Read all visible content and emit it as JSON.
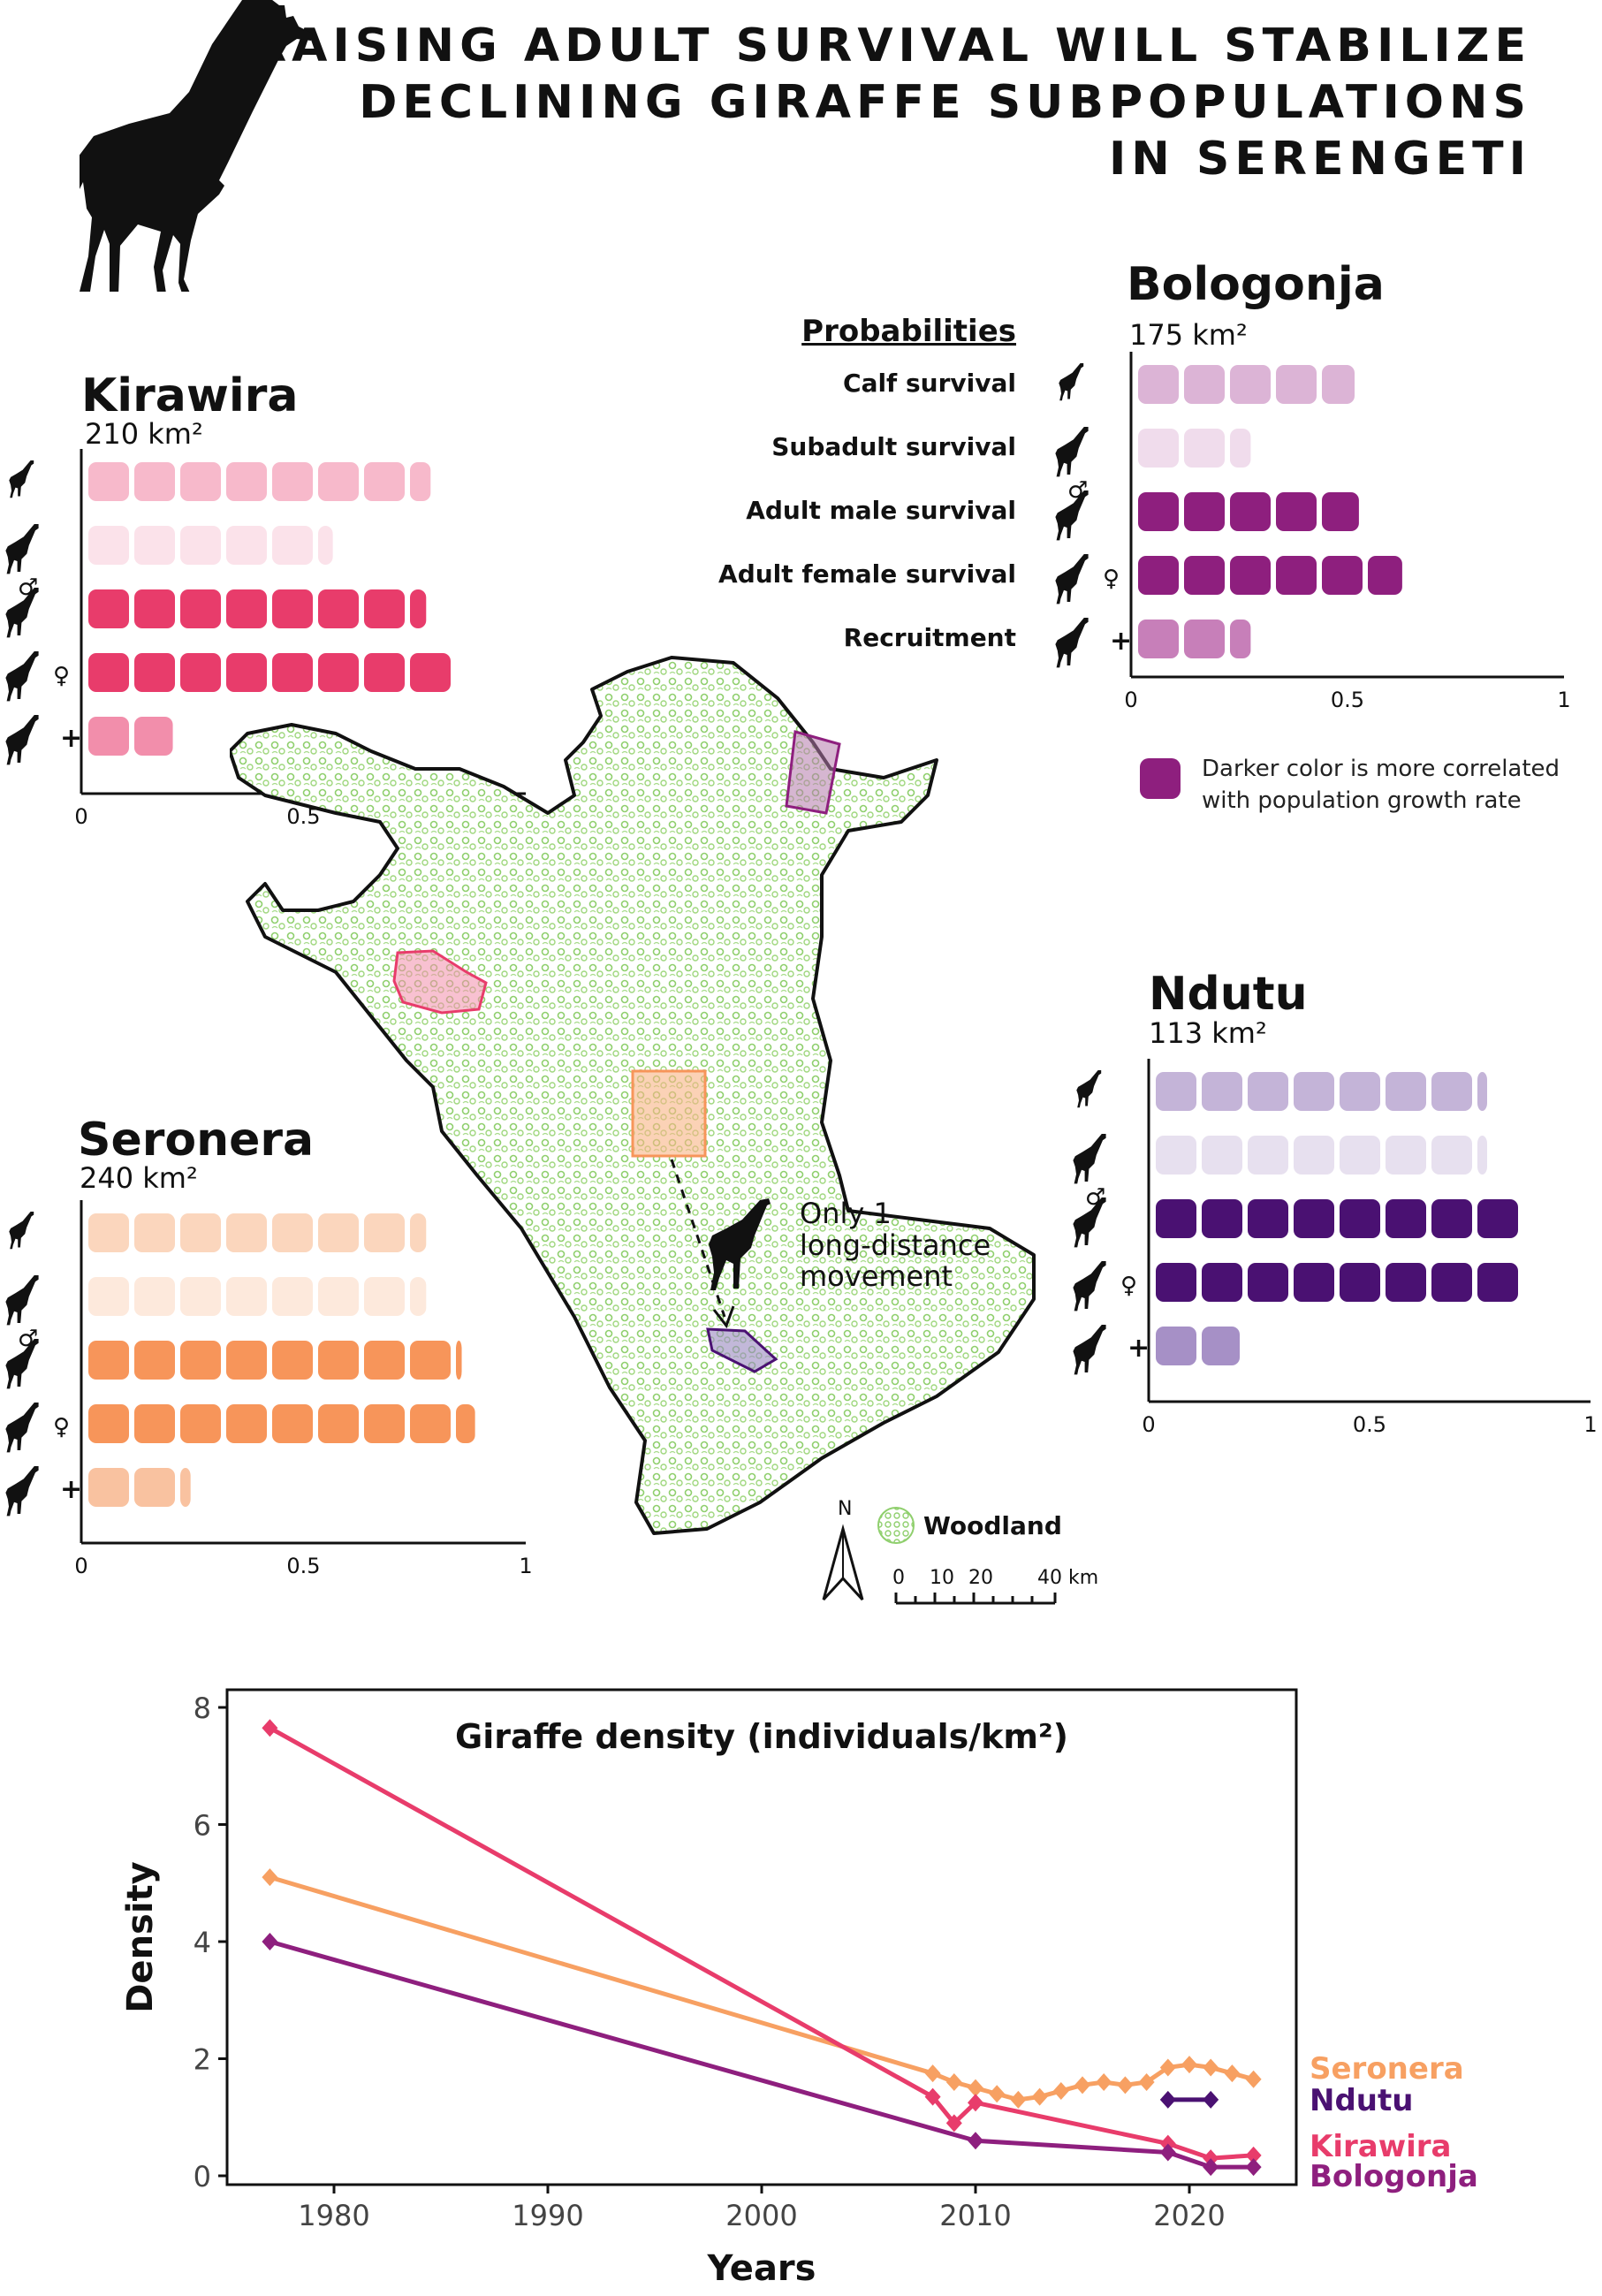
{
  "title": {
    "line1": "RAISING ADULT SURVIVAL WILL STABILIZE",
    "line2": "DECLINING GIRAFFE SUBPOPULATIONS",
    "line3": "IN SERENGETI"
  },
  "probabilities": {
    "heading": "Probabilities",
    "labels": [
      "Calf survival",
      "Subadult survival",
      "Adult male survival",
      "Adult female survival",
      "Recruitment"
    ],
    "axis_ticks": [
      "0",
      "0.5",
      "1"
    ],
    "legend_text_1": "Darker color is more correlated",
    "legend_text_2": "with population growth rate",
    "legend_swatch": "#8e1f7e"
  },
  "regions": {
    "kirawira": {
      "name": "Kirawira",
      "area": "210 km²",
      "color": "#e83c6b",
      "values": [
        0.77,
        0.55,
        0.76,
        0.83,
        0.19
      ],
      "bar_colors": [
        "#f7b9cb",
        "#fbe2ea",
        "#e83c6b",
        "#e83c6b",
        "#f28eab"
      ]
    },
    "bologonja": {
      "name": "Bologonja",
      "area": "175 km²",
      "color": "#8e1f7e",
      "values": [
        0.5,
        0.26,
        0.51,
        0.61,
        0.26
      ],
      "bar_colors": [
        "#dcb4d6",
        "#f0dcec",
        "#8e1f7e",
        "#8e1f7e",
        "#c77fb9"
      ]
    },
    "ndutu": {
      "name": "Ndutu",
      "area": "113 km²",
      "color": "#4a1172",
      "values": [
        0.75,
        0.75,
        0.82,
        0.84,
        0.19
      ],
      "bar_colors": [
        "#c4b4d8",
        "#e7e0ef",
        "#4a1172",
        "#4a1172",
        "#a690c6"
      ]
    },
    "seronera": {
      "name": "Seronera",
      "area": "240 km²",
      "color": "#f79a5c",
      "values": [
        0.76,
        0.76,
        0.84,
        0.87,
        0.23
      ],
      "bar_colors": [
        "#fbd6bd",
        "#fde9dc",
        "#f7955a",
        "#f7955a",
        "#f9c2a0"
      ]
    }
  },
  "map": {
    "movement_text_1": "Only 1",
    "movement_text_2": "long-distance",
    "movement_text_3": "movement",
    "north_label": "N",
    "woodland_label": "Woodland",
    "scale_labels": [
      "0",
      "10",
      "20",
      "40 km"
    ]
  },
  "chart_data": {
    "type": "line",
    "title": "Giraffe density (individuals/km²)",
    "xlabel": "Years",
    "ylabel": "Density",
    "xlim": [
      1975,
      2025
    ],
    "ylim": [
      0,
      8
    ],
    "xticks": [
      1980,
      1990,
      2000,
      2010,
      2020
    ],
    "yticks": [
      0,
      2,
      4,
      6,
      8
    ],
    "series": [
      {
        "name": "Seronera",
        "color": "#f7a062",
        "x": [
          1977,
          2008,
          2009,
          2010,
          2011,
          2012,
          2013,
          2014,
          2015,
          2016,
          2017,
          2018,
          2019,
          2020,
          2021,
          2022,
          2023
        ],
        "y": [
          5.1,
          1.75,
          1.6,
          1.5,
          1.4,
          1.3,
          1.35,
          1.45,
          1.55,
          1.6,
          1.55,
          1.6,
          1.85,
          1.9,
          1.85,
          1.75,
          1.65
        ]
      },
      {
        "name": "Ndutu",
        "color": "#4a1172",
        "x": [
          2019,
          2021
        ],
        "y": [
          1.3,
          1.3
        ]
      },
      {
        "name": "Kirawira",
        "color": "#e83c6b",
        "x": [
          1977,
          2008,
          2009,
          2010,
          2019,
          2021,
          2023
        ],
        "y": [
          7.65,
          1.35,
          0.9,
          1.25,
          0.55,
          0.3,
          0.35
        ]
      },
      {
        "name": "Bologonja",
        "color": "#8e1f7e",
        "x": [
          1977,
          2010,
          2019,
          2021,
          2023
        ],
        "y": [
          4.0,
          0.6,
          0.4,
          0.15,
          0.15
        ]
      }
    ],
    "legend": [
      "Seronera",
      "Ndutu",
      "Kirawira",
      "Bologonja"
    ]
  }
}
